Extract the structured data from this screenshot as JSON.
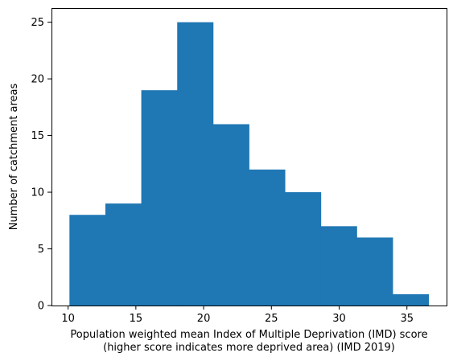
{
  "chart_data": {
    "type": "bar",
    "title": "",
    "xlabel_lines": [
      "Population weighted mean Index of Multiple Deprivation (IMD) score",
      "(higher score indicates more deprived area) (IMD 2019)"
    ],
    "ylabel": "Number of catchment areas",
    "bin_edges": [
      10.1,
      12.75,
      15.4,
      18.05,
      20.7,
      23.35,
      26.0,
      28.65,
      31.3,
      33.95,
      36.6
    ],
    "counts": [
      8,
      9,
      19,
      25,
      16,
      12,
      10,
      7,
      6,
      1
    ],
    "xlim": [
      8.775,
      37.925
    ],
    "ylim": [
      0,
      26.25
    ],
    "xticks": [
      10,
      15,
      20,
      25,
      30,
      35
    ],
    "yticks": [
      0,
      5,
      10,
      15,
      20,
      25
    ],
    "bar_color": "#1f77b4",
    "grid": false,
    "legend": "none"
  }
}
